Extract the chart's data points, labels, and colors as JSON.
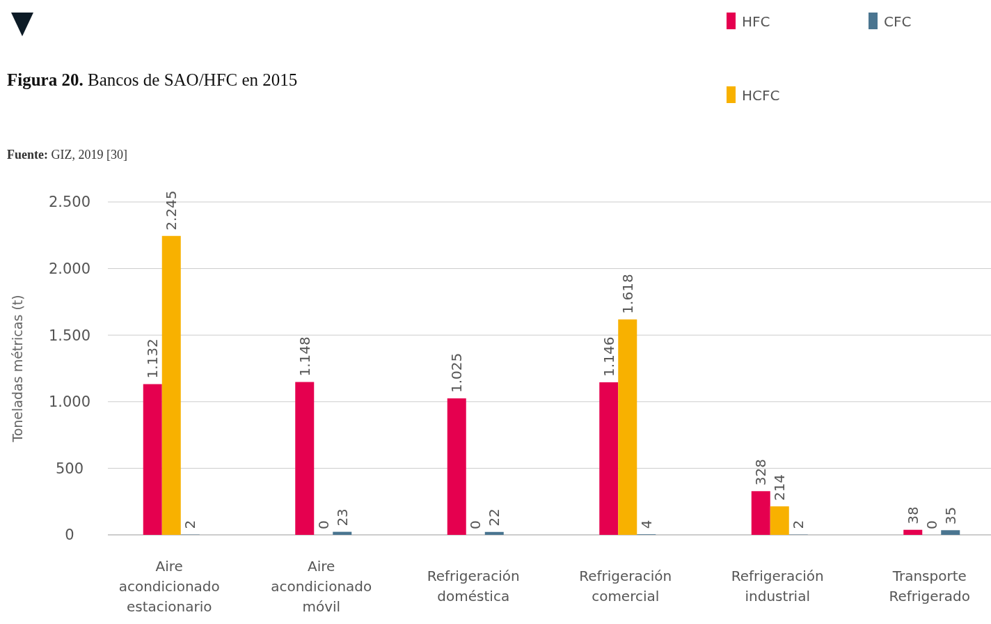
{
  "chart_data": {
    "type": "bar",
    "title": "Figura 20. Bancos de SAO/HFC en 2015",
    "annotations": [
      "Fuente: GIZ, 2019 [30]"
    ],
    "ylabel": "Toneladas métricas (t)",
    "categories": [
      "Aire acondicionado estacionario",
      "Aire acondicionado móvil",
      "Refrigeración doméstica",
      "Refrigeración comercial",
      "Refrigeración industrial",
      "Transporte Refrigerado"
    ],
    "series": [
      {
        "name": "HFC",
        "color": "#e5004f",
        "values": [
          1132,
          1148,
          1025,
          1146,
          328,
          38
        ],
        "value_labels": [
          "1.132",
          "1.148",
          "1.025",
          "1.146",
          "328",
          "38"
        ]
      },
      {
        "name": "HCFC",
        "color": "#f8b100",
        "values": [
          2245,
          0,
          0,
          1618,
          214,
          0
        ],
        "value_labels": [
          "2.245",
          "0",
          "0",
          "1.618",
          "214",
          "0"
        ]
      },
      {
        "name": "CFC",
        "color": "#4a7590",
        "values": [
          2,
          23,
          22,
          4,
          2,
          35
        ],
        "value_labels": [
          "2",
          "23",
          "22",
          "4",
          "2",
          "35"
        ]
      }
    ],
    "ylim": [
      0,
      2500
    ],
    "yticks": [
      0,
      500,
      {
        "value": 1000,
        "label": "1.000"
      },
      {
        "value": 1500,
        "label": "1.500"
      },
      {
        "value": 2000,
        "label": "2.000"
      },
      {
        "value": 2500,
        "label": "2.500"
      }
    ],
    "grid": "y",
    "legend": "top right"
  }
}
